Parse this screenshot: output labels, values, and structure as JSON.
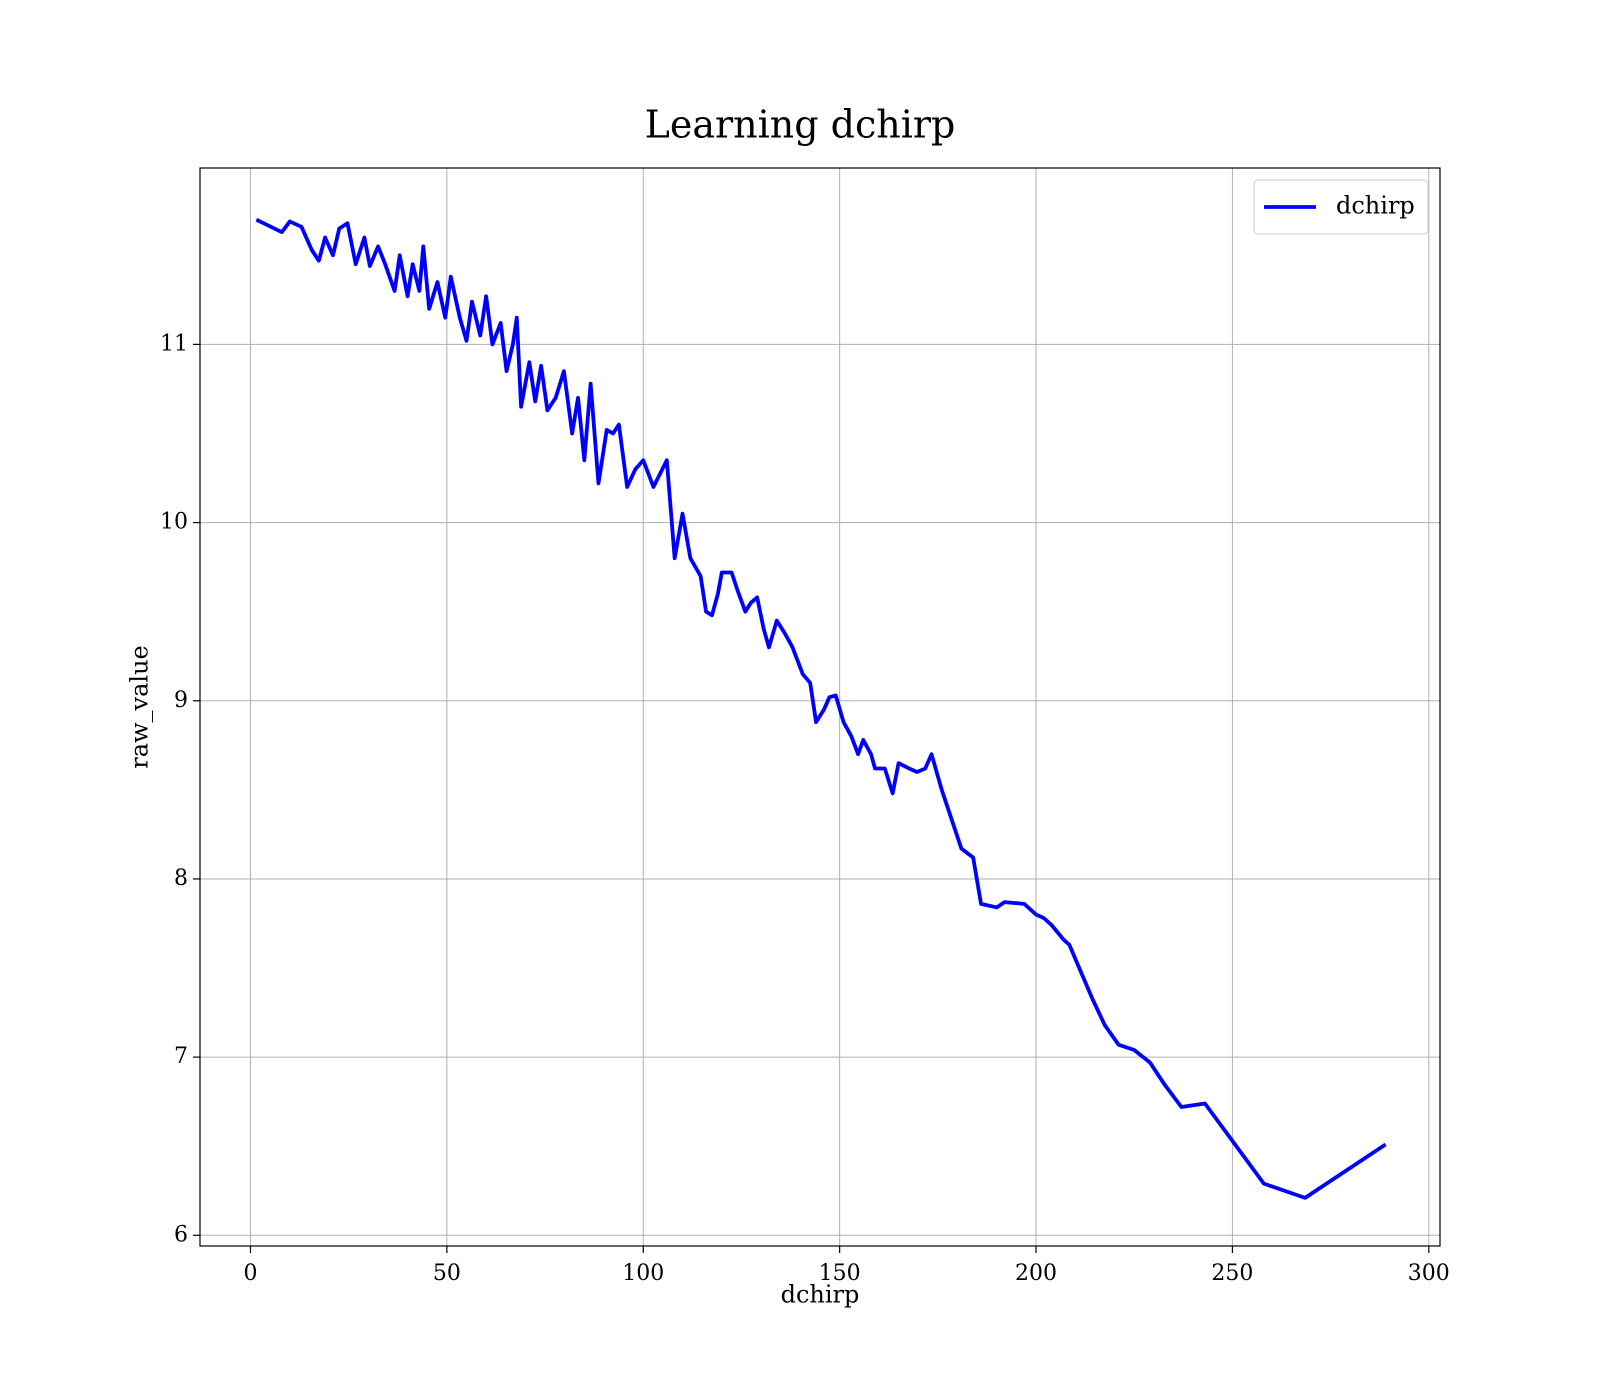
{
  "chart_data": {
    "type": "line",
    "title": "Learning dchirp",
    "x_label": "dchirp",
    "y_label": "raw_value",
    "xlim": [
      -12.85,
      302.85
    ],
    "ylim": [
      5.94,
      11.99
    ],
    "xticks": [
      0,
      50,
      100,
      150,
      200,
      250,
      300
    ],
    "yticks": [
      6,
      7,
      8,
      9,
      10,
      11
    ],
    "grid": true,
    "legend": "upper right",
    "x": [
      1.5,
      8,
      10,
      13,
      15.6,
      17.4,
      19,
      21,
      22.6,
      24.7,
      26.8,
      29,
      30.4,
      32.5,
      34.3,
      36.7,
      38,
      40,
      41.3,
      43,
      44,
      45.5,
      47.6,
      49.6,
      51,
      53.3,
      55,
      56.4,
      58.5,
      60,
      61.6,
      63.7,
      65.2,
      66.8,
      67.8,
      68.9,
      71,
      72.5,
      74,
      75.6,
      77.7,
      79.8,
      81.9,
      83.4,
      85,
      86.6,
      88.6,
      90.7,
      92.3,
      93.8,
      95.9,
      98,
      100,
      102.6,
      106,
      108,
      110,
      112,
      114.6,
      116,
      117.5,
      119,
      120,
      122.5,
      124,
      126,
      127.4,
      129,
      130.7,
      132,
      134,
      136,
      138,
      140.6,
      142.5,
      144,
      146,
      147.4,
      149,
      151,
      153,
      154.7,
      156,
      158,
      159,
      161.5,
      163.5,
      165,
      167.7,
      169.7,
      171.8,
      173.4,
      176,
      181,
      184,
      186,
      190,
      192,
      197,
      200,
      202,
      204,
      207,
      208.5,
      211,
      214.5,
      217.5,
      221,
      225,
      229,
      232.6,
      237,
      243,
      251,
      258,
      268.5,
      289
    ],
    "series": [
      {
        "name": "dchirp",
        "color": "#0000ff",
        "values": [
          11.7,
          11.63,
          11.69,
          11.66,
          11.53,
          11.47,
          11.6,
          11.5,
          11.65,
          11.68,
          11.45,
          11.6,
          11.44,
          11.55,
          11.45,
          11.3,
          11.5,
          11.27,
          11.45,
          11.3,
          11.55,
          11.2,
          11.35,
          11.15,
          11.38,
          11.15,
          11.02,
          11.24,
          11.05,
          11.27,
          11.0,
          11.12,
          10.85,
          11.0,
          11.15,
          10.65,
          10.9,
          10.68,
          10.88,
          10.63,
          10.7,
          10.85,
          10.5,
          10.7,
          10.35,
          10.78,
          10.22,
          10.52,
          10.5,
          10.55,
          10.2,
          10.3,
          10.35,
          10.2,
          10.35,
          9.8,
          10.05,
          9.8,
          9.7,
          9.5,
          9.48,
          9.6,
          9.72,
          9.72,
          9.62,
          9.5,
          9.55,
          9.58,
          9.4,
          9.3,
          9.45,
          9.38,
          9.3,
          9.15,
          9.1,
          8.88,
          8.95,
          9.02,
          9.03,
          8.88,
          8.8,
          8.7,
          8.78,
          8.7,
          8.62,
          8.62,
          8.48,
          8.65,
          8.62,
          8.6,
          8.62,
          8.7,
          8.5,
          8.17,
          8.12,
          7.86,
          7.84,
          7.87,
          7.86,
          7.8,
          7.78,
          7.74,
          7.66,
          7.63,
          7.5,
          7.32,
          7.18,
          7.07,
          7.04,
          6.97,
          6.85,
          6.72,
          6.74,
          6.5,
          6.29,
          6.21,
          6.51
        ]
      }
    ]
  }
}
